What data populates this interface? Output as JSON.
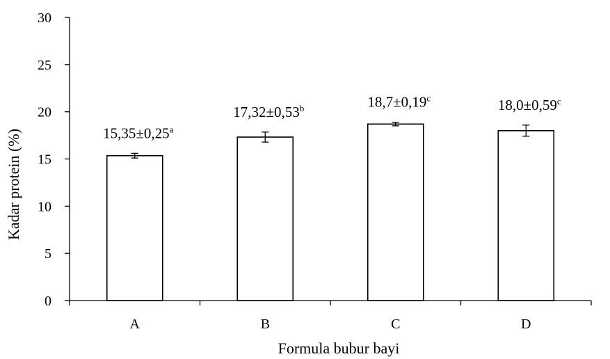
{
  "chart_data": {
    "type": "bar",
    "title": "",
    "xlabel": "Formula bubur bayi",
    "ylabel": "Kadar protein (%)",
    "categories": [
      "A",
      "B",
      "C",
      "D"
    ],
    "values": [
      15.35,
      17.32,
      18.7,
      18.0
    ],
    "errors": [
      0.25,
      0.53,
      0.19,
      0.59
    ],
    "ylim": [
      0,
      30
    ],
    "yticks": [
      0,
      5,
      10,
      15,
      20,
      25,
      30
    ],
    "ytick_labels": [
      "0",
      "5",
      "10",
      "15",
      "20",
      "25",
      "30"
    ],
    "grid": false,
    "legend": "none",
    "data_labels": [
      {
        "text": "15,35±0,25",
        "sup": "a"
      },
      {
        "text": "17,32±0,53",
        "sup": "b"
      },
      {
        "text": "18,7±0,19",
        "sup": "c"
      },
      {
        "text": "18,0±0,59",
        "sup": "c"
      }
    ],
    "colors": {
      "bar_fill": "#ffffff",
      "bar_stroke": "#000000",
      "axis": "#000000"
    }
  }
}
